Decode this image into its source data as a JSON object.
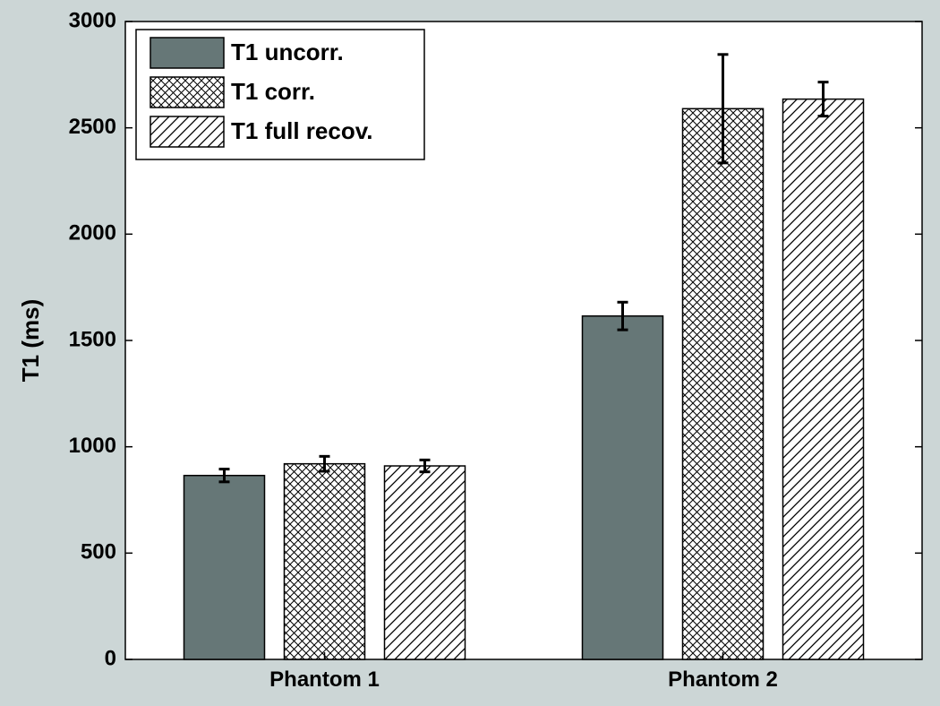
{
  "chart_data": {
    "type": "bar",
    "title": "",
    "xlabel": "",
    "ylabel": "T1 (ms)",
    "categories": [
      "Phantom 1",
      "Phantom 2"
    ],
    "ylim": [
      0,
      3000
    ],
    "yticks": [
      0,
      500,
      1000,
      1500,
      2000,
      2500,
      3000
    ],
    "grid": false,
    "legend_position": "top-left",
    "series": [
      {
        "name": "T1 uncorr.",
        "values": [
          865,
          1615
        ],
        "errors": [
          30,
          65
        ],
        "fill": "solid",
        "color": "#667777"
      },
      {
        "name": "T1 corr.",
        "values": [
          920,
          2590
        ],
        "errors": [
          35,
          255
        ],
        "fill": "crosshatch",
        "color": "#ffffff"
      },
      {
        "name": "T1 full recov.",
        "values": [
          910,
          2635
        ],
        "errors": [
          28,
          80
        ],
        "fill": "diagonal",
        "color": "#ffffff"
      }
    ]
  }
}
